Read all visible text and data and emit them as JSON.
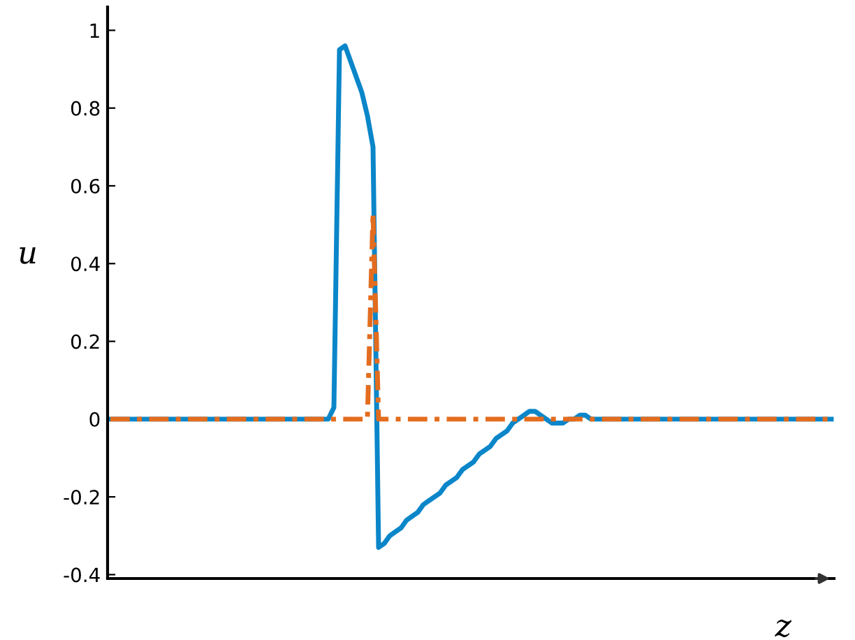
{
  "chart_data": {
    "type": "line",
    "xlabel": "z",
    "ylabel": "u",
    "categories": [
      null,
      null,
      null,
      null,
      null,
      null,
      null,
      null,
      null,
      null,
      null,
      null,
      null,
      null,
      null,
      null,
      null,
      null,
      null,
      null,
      null,
      null,
      null,
      null,
      null,
      null,
      null,
      null,
      null,
      null,
      null,
      null,
      null,
      null,
      null,
      null,
      null,
      null,
      null,
      null,
      null,
      null,
      null,
      null,
      null,
      null,
      null,
      null,
      null,
      null,
      null,
      null,
      null,
      null,
      null,
      null,
      null,
      null,
      null,
      null,
      null,
      null,
      null,
      null,
      null,
      null,
      null,
      null,
      null,
      null,
      null,
      null,
      null,
      null,
      null,
      null,
      null,
      null,
      null,
      null,
      null,
      null,
      null,
      null,
      null,
      null,
      null,
      null,
      null,
      null,
      null,
      null,
      null,
      null,
      null,
      null,
      null,
      null,
      null,
      null,
      null,
      null,
      null,
      null,
      null,
      null,
      null,
      null,
      null,
      null,
      null,
      null,
      null,
      null,
      null,
      null,
      null,
      null,
      null,
      null,
      null,
      null,
      null,
      null,
      null,
      null,
      null,
      null,
      null,
      null
    ],
    "series": [
      {
        "color": "#0a86c9",
        "line_style": "solid",
        "values": [
          0,
          0,
          0,
          0,
          0,
          0,
          0,
          0,
          0,
          0,
          0,
          0,
          0,
          0,
          0,
          0,
          0,
          0,
          0,
          0,
          0,
          0,
          0,
          0,
          0,
          0,
          0,
          0,
          0,
          0,
          0,
          0,
          0,
          0,
          0,
          0,
          0,
          0,
          0,
          0,
          0.03,
          0.95,
          0.96,
          0.92,
          0.88,
          0.84,
          0.78,
          0.7,
          -0.33,
          -0.32,
          -0.3,
          -0.29,
          -0.28,
          -0.26,
          -0.25,
          -0.24,
          -0.22,
          -0.21,
          -0.2,
          -0.19,
          -0.17,
          -0.16,
          -0.15,
          -0.13,
          -0.12,
          -0.11,
          -0.09,
          -0.08,
          -0.07,
          -0.05,
          -0.04,
          -0.03,
          -0.01,
          0,
          0.01,
          0.02,
          0.02,
          0.01,
          0,
          -0.01,
          -0.01,
          -0.01,
          0,
          0,
          0.01,
          0.01,
          0,
          0,
          0,
          0,
          0,
          0,
          0,
          0,
          0,
          0,
          0,
          0,
          0,
          0,
          0,
          0,
          0,
          0,
          0,
          0,
          0,
          0,
          0,
          0,
          0,
          0,
          0,
          0,
          0,
          0,
          0,
          0,
          0,
          0,
          0,
          0,
          0,
          0,
          0,
          0,
          0,
          0,
          0,
          0
        ]
      },
      {
        "color": "#e36c1e",
        "line_style": "dashed",
        "values": [
          0,
          0,
          0,
          0,
          0,
          0,
          0,
          0,
          0,
          0,
          0,
          0,
          0,
          0,
          0,
          0,
          0,
          0,
          0,
          0,
          0,
          0,
          0,
          0,
          0,
          0,
          0,
          0,
          0,
          0,
          0,
          0,
          0,
          0,
          0,
          0,
          0,
          0,
          0,
          0,
          0,
          0,
          0,
          0,
          0,
          0,
          0,
          0.53,
          0,
          0,
          0,
          0,
          0,
          0,
          0,
          0,
          0,
          0,
          0,
          0,
          0,
          0,
          0,
          0,
          0,
          0,
          0,
          0,
          0,
          0,
          0,
          0,
          0,
          0,
          0,
          0,
          0,
          0,
          0,
          0,
          0,
          0,
          0,
          0,
          0,
          0,
          0,
          0,
          0,
          0,
          0,
          0,
          0,
          0,
          0,
          0,
          0,
          0,
          0,
          0,
          0,
          0,
          0,
          0,
          0,
          0,
          0,
          0,
          0,
          0,
          0,
          0,
          0,
          0,
          0,
          0,
          0,
          0,
          0,
          0,
          0,
          0,
          0,
          0,
          0,
          0,
          0,
          0,
          0,
          0
        ]
      }
    ],
    "ylim": [
      -0.41,
      1.06
    ],
    "yticks": [
      {
        "value": -0.4,
        "label": "-0.4"
      },
      {
        "value": -0.2,
        "label": "-0.2"
      },
      0,
      0.2,
      0.4,
      0.6,
      0.8,
      1
    ],
    "tick_labels": "y",
    "grid": false,
    "legend": false
  }
}
